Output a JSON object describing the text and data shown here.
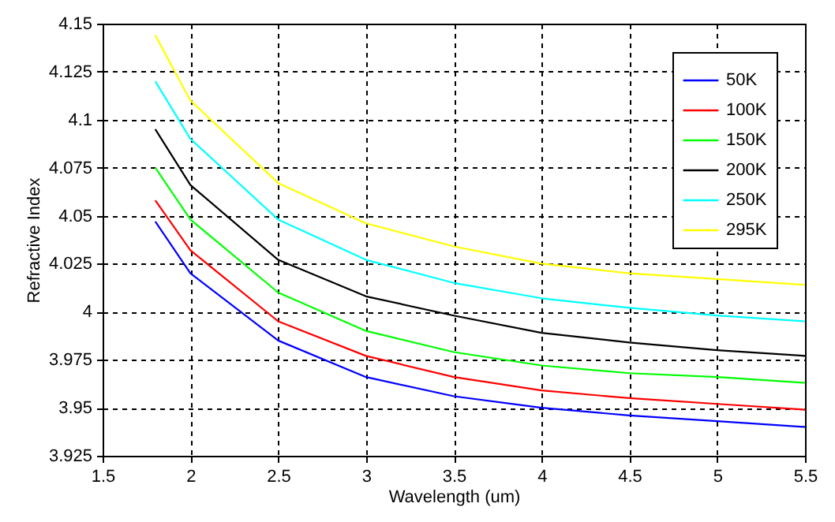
{
  "chart_data": {
    "type": "line",
    "xlabel": "Wavelength (um)",
    "ylabel": "Refractive Index",
    "x": [
      1.8,
      2,
      2.5,
      3,
      3.5,
      4,
      4.5,
      5,
      5.5
    ],
    "series": [
      {
        "name": "50K",
        "color": "#0000ff",
        "values": [
          4.047,
          4.02,
          3.985,
          3.966,
          3.956,
          3.95,
          3.946,
          3.943,
          3.94
        ]
      },
      {
        "name": "100K",
        "color": "#ff0000",
        "values": [
          4.058,
          4.032,
          3.995,
          3.977,
          3.966,
          3.959,
          3.955,
          3.952,
          3.949
        ]
      },
      {
        "name": "150K",
        "color": "#00ff00",
        "values": [
          4.075,
          4.048,
          4.01,
          3.99,
          3.979,
          3.972,
          3.968,
          3.966,
          3.963
        ]
      },
      {
        "name": "200K",
        "color": "#000000",
        "values": [
          4.095,
          4.066,
          4.027,
          4.008,
          3.998,
          3.989,
          3.984,
          3.98,
          3.977
        ]
      },
      {
        "name": "250K",
        "color": "#00ffff",
        "values": [
          4.12,
          4.09,
          4.048,
          4.027,
          4.015,
          4.007,
          4.002,
          3.998,
          3.995
        ]
      },
      {
        "name": "295K",
        "color": "#ffff00",
        "values": [
          4.144,
          4.11,
          4.067,
          4.046,
          4.034,
          4.025,
          4.02,
          4.017,
          4.014
        ]
      }
    ],
    "xlim": [
      1.5,
      5.5
    ],
    "xticks": [
      1.5,
      2,
      2.5,
      3,
      3.5,
      4,
      4.5,
      5,
      5.5
    ],
    "ylim": [
      3.925,
      4.15
    ],
    "yticks": [
      3.925,
      3.95,
      3.975,
      4,
      4.025,
      4.05,
      4.075,
      4.1,
      4.125,
      4.15
    ],
    "grid": true,
    "legend": "top right",
    "line_style": "solid",
    "marker": "none"
  }
}
